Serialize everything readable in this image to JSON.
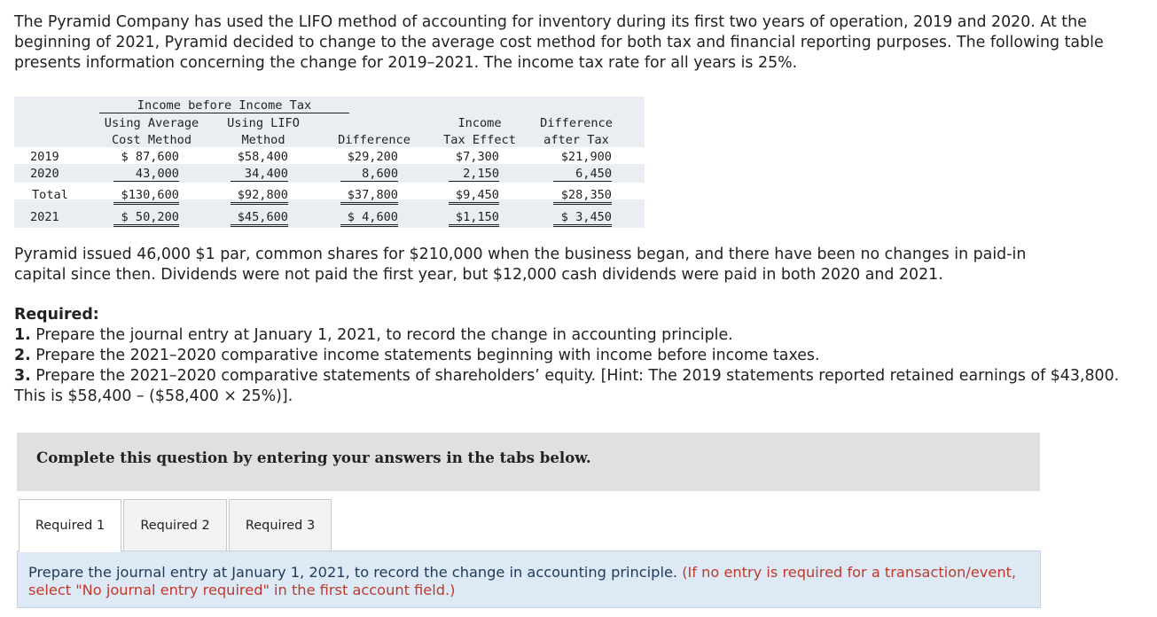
{
  "intro": "The Pyramid Company has used the LIFO method of accounting for inventory during its first two years of operation, 2019 and 2020. At the beginning of 2021, Pyramid decided to change to the average cost method for both tax and financial reporting purposes. The following table presents information concerning the change for 2019–2021. The income tax rate for all years is 25%.",
  "table": {
    "group_header": "Income before Income Tax",
    "headers": {
      "avg_line1": "Using Average",
      "avg_line2": "Cost Method",
      "lifo_line1": "Using LIFO",
      "lifo_line2": "Method",
      "diff": "Difference",
      "tax_line1": "Income",
      "tax_line2": "Tax Effect",
      "after_line1": "Difference",
      "after_line2": "after Tax"
    },
    "rows": [
      {
        "label": "2019",
        "avg": "$ 87,600",
        "lifo": "$58,400",
        "diff": "$29,200",
        "tax": "$7,300",
        "after": "$21,900"
      },
      {
        "label": "2020",
        "avg": "43,000",
        "lifo": "34,400",
        "diff": "8,600",
        "tax": "2,150",
        "after": "6,450"
      },
      {
        "label": "Total",
        "avg": "$130,600",
        "lifo": "$92,800",
        "diff": "$37,800",
        "tax": "$9,450",
        "after": "$28,350"
      },
      {
        "label": "2021",
        "avg": "$ 50,200",
        "lifo": "$45,600",
        "diff": "$ 4,600",
        "tax": "$1,150",
        "after": "$ 3,450"
      }
    ]
  },
  "para2": "Pyramid issued 46,000 $1 par, common shares for $210,000 when the business began, and there have been no changes in paid-in capital since then. Dividends were not paid the first year, but $12,000 cash dividends were paid in both 2020 and 2021.",
  "required": {
    "heading": "Required:",
    "items": [
      {
        "num": "1.",
        "text": " Prepare the journal entry at January 1, 2021, to record the change in accounting principle."
      },
      {
        "num": "2.",
        "text": " Prepare the 2021–2020 comparative income statements beginning with income before income taxes."
      },
      {
        "num": "3.",
        "text": " Prepare the 2021–2020 comparative statements of shareholders’ equity. [Hint: The 2019 statements reported retained earnings of $43,800. This is $58,400 – ($58,400 × 25%)]."
      }
    ]
  },
  "banner": "Complete this question by entering your answers in the tabs below.",
  "tabs": [
    "Required 1",
    "Required 2",
    "Required 3"
  ],
  "panel": {
    "instruction": "Prepare the journal entry at January 1, 2021, to record the change in accounting principle.",
    "note": "(If no entry is required for a transaction/event, select \"No journal entry required\" in the first account field.)"
  }
}
